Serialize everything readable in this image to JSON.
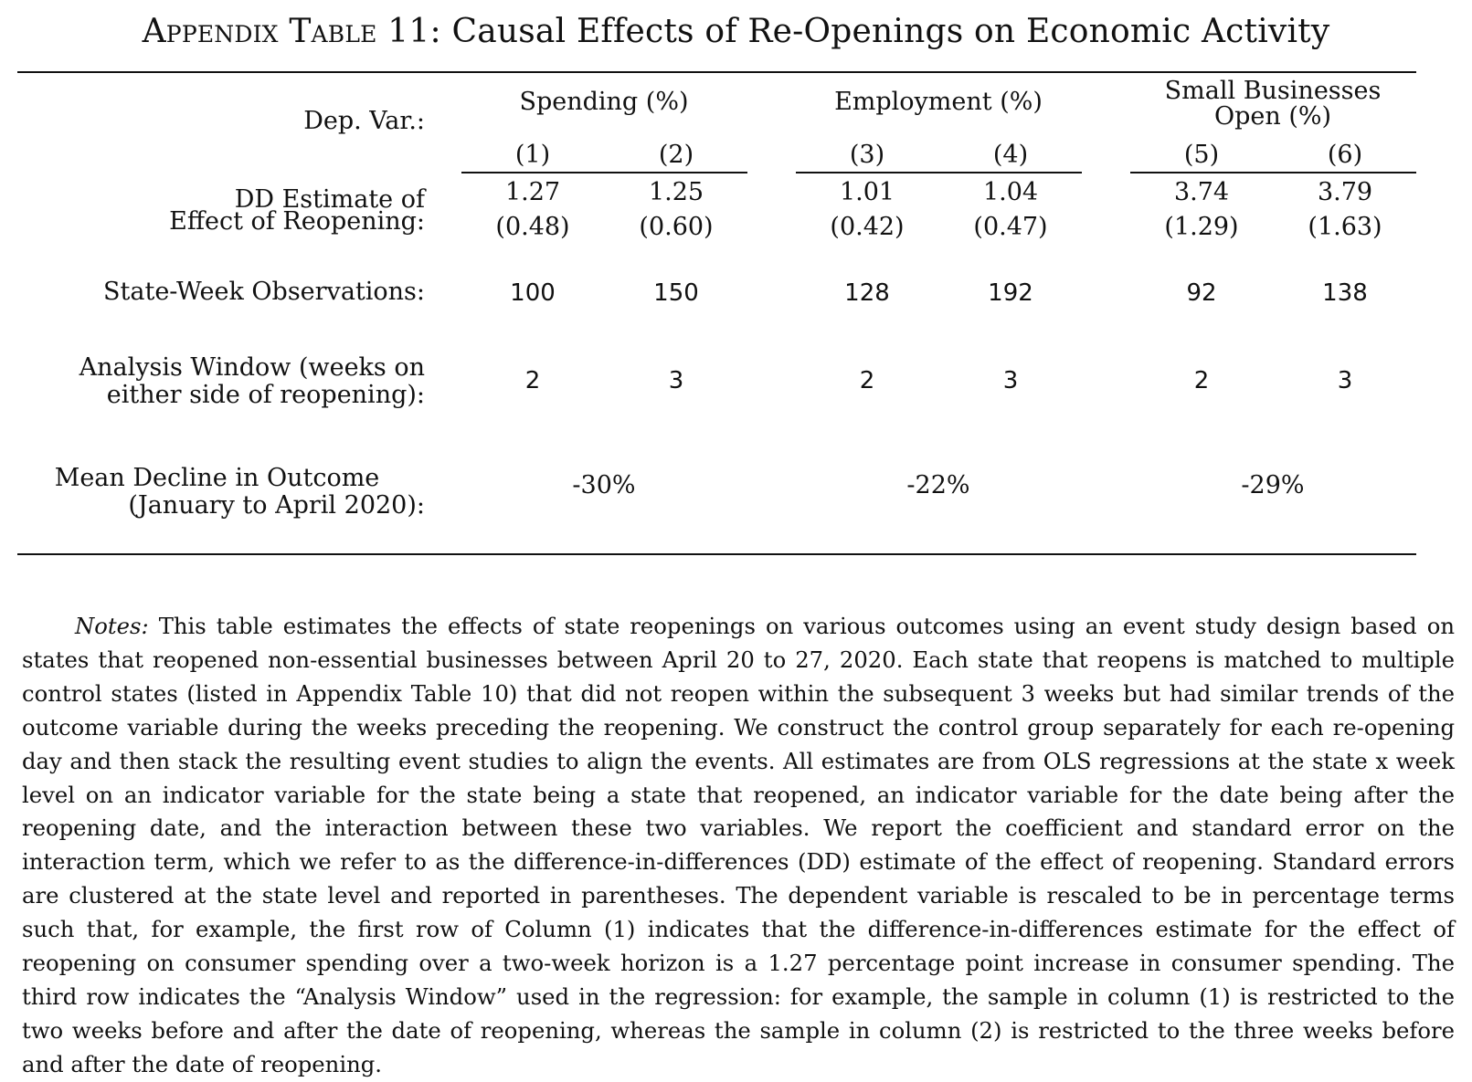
{
  "title_prefix": "Appendix Table 11:",
  "title_rest": "Causal Effects of Re-Openings on Economic Activity",
  "row_labels": {
    "dep_var": "Dep. Var.:",
    "dd_line1": "DD Estimate of",
    "dd_line2": "Effect of Reopening:",
    "obs": "State-Week Observations:",
    "window_line1": "Analysis Window (weeks on",
    "window_line2": "either side of reopening):",
    "decline_line1": "Mean Decline in Outcome",
    "decline_line2": "(January to April 2020):"
  },
  "groups": [
    {
      "line1": "Spending (%)",
      "line2": "",
      "decline": "-30%"
    },
    {
      "line1": "Employment (%)",
      "line2": "",
      "decline": "-22%"
    },
    {
      "line1": "Small Businesses",
      "line2": "Open (%)",
      "decline": "-29%"
    }
  ],
  "columns": [
    {
      "num": "(1)",
      "estimate": "1.27",
      "se": "(0.48)",
      "obs": "100",
      "window": "2"
    },
    {
      "num": "(2)",
      "estimate": "1.25",
      "se": "(0.60)",
      "obs": "150",
      "window": "3"
    },
    {
      "num": "(3)",
      "estimate": "1.01",
      "se": "(0.42)",
      "obs": "128",
      "window": "2"
    },
    {
      "num": "(4)",
      "estimate": "1.04",
      "se": "(0.47)",
      "obs": "192",
      "window": "3"
    },
    {
      "num": "(5)",
      "estimate": "3.74",
      "se": "(1.29)",
      "obs": "92",
      "window": "2"
    },
    {
      "num": "(6)",
      "estimate": "3.79",
      "se": "(1.63)",
      "obs": "138",
      "window": "3"
    }
  ],
  "notes": {
    "lead": "Notes:",
    "body": "This table estimates the effects of state reopenings on various outcomes using an event study design based on states that reopened non-essential businesses between April 20 to 27, 2020. Each state that reopens is matched to multiple control states (listed in Appendix Table 10) that did not reopen within the subsequent 3 weeks but had similar trends of the outcome variable during the weeks preceding the reopening. We construct the control group separately for each re-opening day and then stack the resulting event studies to align the events. All estimates are from OLS regressions at the state x week level on an indicator variable for the state being a state that reopened, an indicator variable for the date being after the reopening date, and the interaction between these two variables. We report the coefficient and standard error on the interaction term, which we refer to as the difference-in-differences (DD) estimate of the effect of reopening. Standard errors are clustered at the state level and reported in parentheses. The dependent variable is rescaled to be in percentage terms such that, for example, the first row of Column (1) indicates that the difference-in-differences estimate for the effect of reopening on consumer spending over a two-week horizon is a 1.27 percentage point increase in consumer spending. The third row indicates the “Analysis Window” used in the regression: for example, the sample in column (1) is restricted to the two weeks before and after the date of reopening, whereas the sample in column (2) is restricted to the three weeks before and after the date of reopening."
  }
}
